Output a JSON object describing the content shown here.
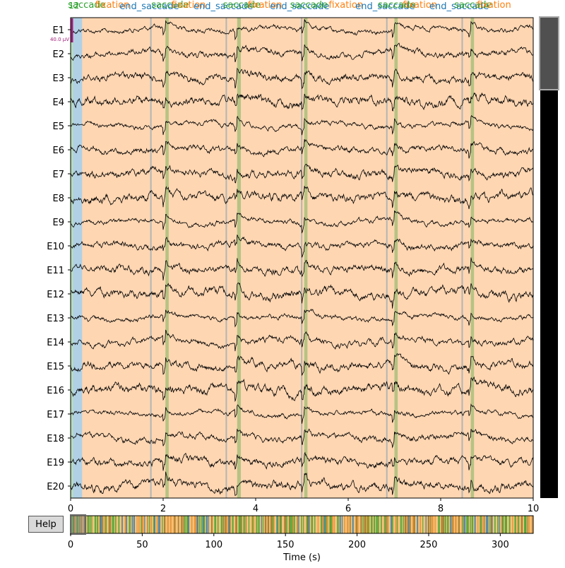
{
  "help_label": "Help",
  "time_axis_label": "Time (s)",
  "scale_label": "40.0 µV",
  "channel_selector_number": "12",
  "channels": [
    "E1",
    "E2",
    "E3",
    "E4",
    "E5",
    "E6",
    "E7",
    "E8",
    "E9",
    "E10",
    "E11",
    "E12",
    "E13",
    "E14",
    "E15",
    "E16",
    "E17",
    "E18",
    "E19",
    "E20"
  ],
  "x_ticks": [
    "0",
    "2",
    "4",
    "6",
    "8",
    "10"
  ],
  "overview_ticks": [
    "0",
    "50",
    "100",
    "150",
    "200",
    "250",
    "300"
  ],
  "view_window": {
    "start_s": 0,
    "end_s": 10
  },
  "recording_duration_s": 323,
  "colors": {
    "fixation": "#ff7f0e",
    "saccade": "#2ca02c",
    "end_saccade": "#1f77b4",
    "trace": "#000000",
    "scale_bar": "#a0207a"
  },
  "annotations": [
    {
      "start": 0.0,
      "end": 0.05,
      "label": "saccade",
      "color": "#2ca02c"
    },
    {
      "start": 0.05,
      "end": 0.25,
      "label": "end_saccade",
      "color": "#1f77b4"
    },
    {
      "start": 0.25,
      "end": 10.0,
      "label": "fixation",
      "color": "#ff7f0e"
    },
    {
      "start": 2.05,
      "end": 2.12,
      "label": "saccade",
      "color": "#2ca02c"
    },
    {
      "start": 1.72,
      "end": 1.74,
      "label": "end_saccade",
      "color": "#1f77b4"
    },
    {
      "start": 3.6,
      "end": 3.68,
      "label": "saccade",
      "color": "#2ca02c"
    },
    {
      "start": 3.35,
      "end": 3.37,
      "label": "end_saccade",
      "color": "#1f77b4"
    },
    {
      "start": 5.05,
      "end": 5.12,
      "label": "saccade",
      "color": "#2ca02c"
    },
    {
      "start": 4.98,
      "end": 5.0,
      "label": "end_saccade",
      "color": "#1f77b4"
    },
    {
      "start": 7.0,
      "end": 7.07,
      "label": "saccade",
      "color": "#2ca02c"
    },
    {
      "start": 6.82,
      "end": 6.84,
      "label": "end_saccade",
      "color": "#1f77b4"
    },
    {
      "start": 8.65,
      "end": 8.72,
      "label": "saccade",
      "color": "#2ca02c"
    },
    {
      "start": 8.45,
      "end": 8.47,
      "label": "end_saccade",
      "color": "#1f77b4"
    }
  ],
  "annotation_labels_top": [
    {
      "t": 0.35,
      "text": "saccade",
      "color": "#2ca02c"
    },
    {
      "t": 0.9,
      "text": "fixation",
      "color": "#ff7f0e"
    },
    {
      "t": 1.7,
      "text": "end_saccade",
      "color": "#1f77b4"
    },
    {
      "t": 2.15,
      "text": "saccade",
      "color": "#2ca02c"
    },
    {
      "t": 2.55,
      "text": "fixation",
      "color": "#ff7f0e"
    },
    {
      "t": 3.3,
      "text": "end_saccade",
      "color": "#1f77b4"
    },
    {
      "t": 3.7,
      "text": "saccade",
      "color": "#2ca02c"
    },
    {
      "t": 4.2,
      "text": "fixation",
      "color": "#ff7f0e"
    },
    {
      "t": 4.95,
      "text": "end_saccade",
      "color": "#1f77b4"
    },
    {
      "t": 5.15,
      "text": "saccade",
      "color": "#2ca02c"
    },
    {
      "t": 5.95,
      "text": "fixation",
      "color": "#ff7f0e"
    },
    {
      "t": 6.8,
      "text": "end_saccade",
      "color": "#1f77b4"
    },
    {
      "t": 7.05,
      "text": "saccade",
      "color": "#2ca02c"
    },
    {
      "t": 7.55,
      "text": "fixation",
      "color": "#ff7f0e"
    },
    {
      "t": 8.4,
      "text": "end_saccade",
      "color": "#1f77b4"
    },
    {
      "t": 8.7,
      "text": "saccade",
      "color": "#2ca02c"
    },
    {
      "t": 9.15,
      "text": "fixation",
      "color": "#ff7f0e"
    }
  ]
}
